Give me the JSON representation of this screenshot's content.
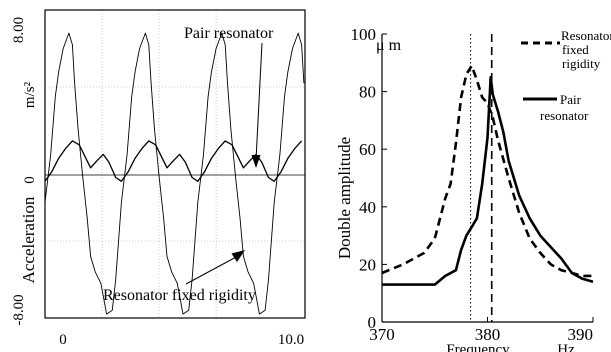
{
  "chart_data": [
    {
      "type": "line",
      "ylabel": "Acceleration",
      "ylabel_unit": "m/s²",
      "x_ticks": [
        "0",
        "10.0"
      ],
      "y_ticks": [
        "8.00",
        "0",
        "-8.00"
      ],
      "xlim": [
        0,
        11.4
      ],
      "ylim": [
        -8,
        8
      ],
      "grid": true,
      "annotations": [
        "Pair resonator",
        "Resonator fixed rigidity"
      ],
      "series": [
        {
          "name": "Resonator fixed rigidity",
          "period": 3.35,
          "samples": [
            {
              "x": 0.0,
              "y": -2.0
            },
            {
              "x": 0.25,
              "y": 0.5
            },
            {
              "x": 0.45,
              "y": 3.5
            },
            {
              "x": 0.6,
              "y": 4.8
            },
            {
              "x": 0.8,
              "y": 6.0
            },
            {
              "x": 1.05,
              "y": 6.8
            },
            {
              "x": 1.2,
              "y": 6.2
            },
            {
              "x": 1.3,
              "y": 4.2
            },
            {
              "x": 1.45,
              "y": 1.8
            },
            {
              "x": 1.65,
              "y": -0.6
            },
            {
              "x": 1.85,
              "y": -2.8
            },
            {
              "x": 2.0,
              "y": -4.8
            },
            {
              "x": 2.2,
              "y": -5.6
            },
            {
              "x": 2.45,
              "y": -6.2
            },
            {
              "x": 2.7,
              "y": -7.8
            },
            {
              "x": 2.95,
              "y": -7.6
            },
            {
              "x": 3.1,
              "y": -6.0
            },
            {
              "x": 3.35,
              "y": -2.0
            }
          ]
        },
        {
          "name": "Pair resonator",
          "period": 3.35,
          "samples": [
            {
              "x": 0.0,
              "y": -0.9
            },
            {
              "x": 0.3,
              "y": -0.4
            },
            {
              "x": 0.6,
              "y": 0.3
            },
            {
              "x": 0.9,
              "y": 0.8
            },
            {
              "x": 1.2,
              "y": 1.2
            },
            {
              "x": 1.5,
              "y": 1.0
            },
            {
              "x": 1.75,
              "y": 0.4
            },
            {
              "x": 2.0,
              "y": -0.2
            },
            {
              "x": 2.3,
              "y": 0.2
            },
            {
              "x": 2.55,
              "y": 0.5
            },
            {
              "x": 2.8,
              "y": 0.1
            },
            {
              "x": 3.1,
              "y": -0.7
            },
            {
              "x": 3.35,
              "y": -0.9
            }
          ]
        }
      ]
    },
    {
      "type": "line",
      "ylabel": "Double amplitude",
      "ylabel_unit": "μ m",
      "xlabel": "Frequency",
      "xlabel_unit": "Hz",
      "xlim": [
        370,
        390
      ],
      "ylim": [
        0,
        100
      ],
      "x_ticks": [
        370,
        380,
        390
      ],
      "y_ticks": [
        0,
        20,
        40,
        60,
        80,
        100
      ],
      "grid": false,
      "legend_position": "top-right",
      "reference_lines": [
        378.4,
        380.4
      ],
      "series": [
        {
          "name": "Resonator fixed rigidity",
          "style": "dashed",
          "points": [
            [
              370,
              17
            ],
            [
              372,
              20
            ],
            [
              374,
              24
            ],
            [
              375,
              29
            ],
            [
              376,
              43
            ],
            [
              376.5,
              48
            ],
            [
              377,
              62
            ],
            [
              377.5,
              78
            ],
            [
              378,
              86
            ],
            [
              378.5,
              89
            ],
            [
              379,
              84
            ],
            [
              379.5,
              78
            ],
            [
              380,
              76
            ],
            [
              380.5,
              71
            ],
            [
              381,
              63
            ],
            [
              382,
              50
            ],
            [
              383,
              38
            ],
            [
              384,
              29
            ],
            [
              385,
              24
            ],
            [
              386,
              20
            ],
            [
              387,
              18
            ],
            [
              388,
              17
            ],
            [
              389,
              16
            ],
            [
              390,
              16
            ]
          ]
        },
        {
          "name": "Pair resonator",
          "style": "solid",
          "points": [
            [
              370,
              13
            ],
            [
              372,
              13
            ],
            [
              374,
              13
            ],
            [
              375,
              13
            ],
            [
              376,
              16
            ],
            [
              377,
              18
            ],
            [
              377.5,
              25
            ],
            [
              378,
              30
            ],
            [
              378.5,
              33
            ],
            [
              379,
              36
            ],
            [
              379.5,
              48
            ],
            [
              380,
              64
            ],
            [
              380.3,
              85
            ],
            [
              380.5,
              79
            ],
            [
              381,
              73
            ],
            [
              381.5,
              66
            ],
            [
              382,
              56
            ],
            [
              383,
              44
            ],
            [
              384,
              36
            ],
            [
              385,
              30
            ],
            [
              386,
              26
            ],
            [
              387,
              22
            ],
            [
              388,
              17
            ],
            [
              389,
              15
            ],
            [
              390,
              14
            ]
          ]
        }
      ]
    }
  ]
}
